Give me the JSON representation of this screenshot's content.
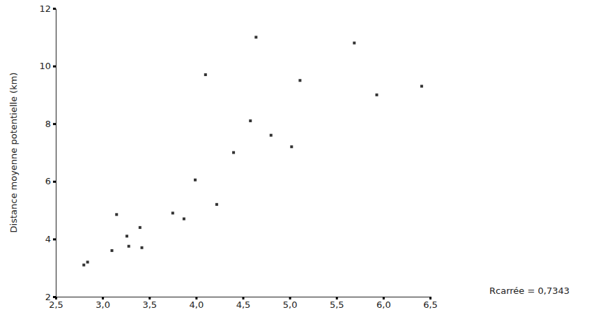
{
  "chart_data": {
    "type": "scatter",
    "y_label": "Distance moyenne potentielle (km)",
    "annotation": "Rcarrée = 0,7343",
    "marker": "square",
    "color": "#333333",
    "x": [
      2.8,
      2.84,
      3.1,
      3.15,
      3.26,
      3.28,
      3.4,
      3.42,
      3.75,
      3.87,
      3.99,
      4.1,
      4.22,
      4.4,
      4.58,
      4.64,
      4.8,
      5.02,
      5.11,
      5.69,
      5.93,
      6.41
    ],
    "y": [
      3.1,
      3.2,
      3.6,
      4.85,
      4.1,
      3.75,
      4.4,
      3.7,
      4.9,
      4.7,
      6.05,
      9.7,
      5.2,
      7.0,
      8.1,
      11.0,
      7.6,
      7.2,
      9.5,
      10.8,
      9.0,
      9.3
    ],
    "xlim": [
      2.5,
      6.5
    ],
    "xticks": [
      {
        "value": 2.5,
        "label": "2,5"
      },
      {
        "value": 3.0,
        "label": "3,0"
      },
      {
        "value": 3.5,
        "label": "3,5"
      },
      {
        "value": 4.0,
        "label": "4,0"
      },
      {
        "value": 4.5,
        "label": "4,5"
      },
      {
        "value": 5.0,
        "label": "5,0"
      },
      {
        "value": 5.5,
        "label": "5,5"
      },
      {
        "value": 6.0,
        "label": "6,0"
      },
      {
        "value": 6.5,
        "label": "6,5"
      }
    ],
    "ylim": [
      2,
      12
    ],
    "yticks": [
      2,
      4,
      6,
      8,
      10,
      12
    ],
    "grid": false
  }
}
